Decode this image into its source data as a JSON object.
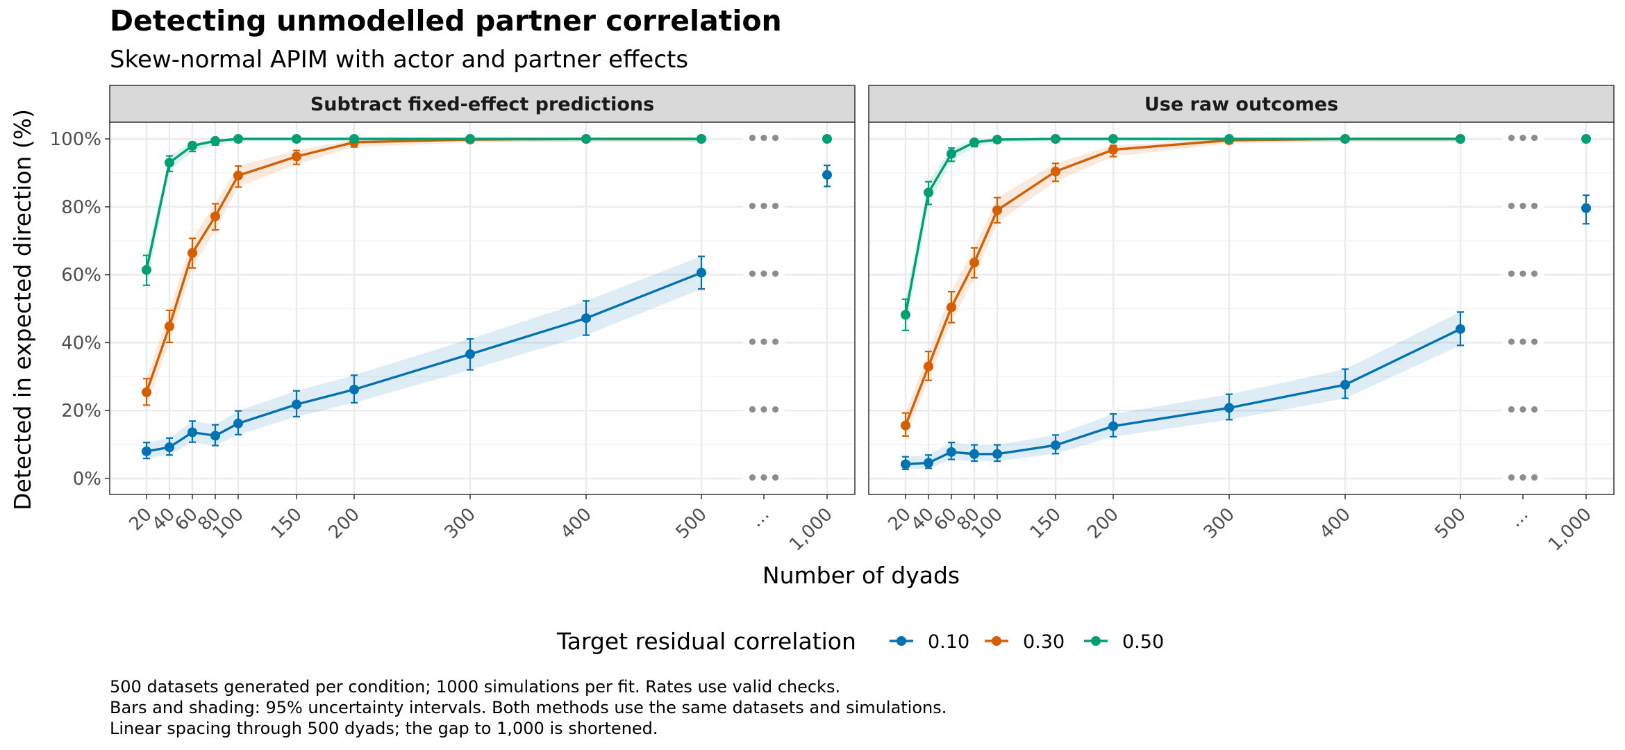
{
  "chart_data": {
    "type": "line",
    "title": "Detecting unmodelled partner correlation",
    "subtitle": "Skew-normal APIM with actor and partner effects",
    "xlabel": "Number of dyads",
    "ylabel": "Detected in expected direction (%)",
    "x_ticks": [
      "20",
      "40",
      "60",
      "80",
      "100",
      "150",
      "200",
      "300",
      "400",
      "500",
      "…",
      "1,000"
    ],
    "y_ticks": [
      "0%",
      "20%",
      "40%",
      "60%",
      "80%",
      "100%"
    ],
    "ylim": [
      0,
      100
    ],
    "gap_marker": "•••",
    "grid": true,
    "legend": {
      "title": "Target residual correlation",
      "position": "bottom",
      "entries": [
        {
          "label": "0.10",
          "color": "#0072B2"
        },
        {
          "label": "0.30",
          "color": "#D55E00"
        },
        {
          "label": "0.50",
          "color": "#009E73"
        }
      ]
    },
    "caption": [
      "500 datasets generated per condition; 1000 simulations per fit. Rates use valid checks.",
      "Bars and shading: 95% uncertainty intervals. Both methods use the same datasets and simulations.",
      "Linear spacing through 500 dyads; the gap to 1,000 is shortened."
    ],
    "panels": [
      {
        "title": "Subtract fixed-effect predictions",
        "series": [
          {
            "name": "0.10",
            "color": "#0072B2",
            "x": [
              20,
              40,
              60,
              80,
              100,
              150,
              200,
              300,
              400,
              500
            ],
            "values": [
              8.0,
              9.2,
              13.6,
              12.6,
              16.2,
              21.8,
              26.2,
              36.6,
              47.2,
              60.6
            ],
            "lower": [
              5.9,
              6.9,
              10.7,
              9.7,
              12.9,
              18.2,
              22.3,
              32.0,
              42.2,
              55.8
            ],
            "upper": [
              10.6,
              11.9,
              16.9,
              15.8,
              19.9,
              25.8,
              30.4,
              41.1,
              52.3,
              65.4
            ],
            "at_1000": {
              "x": 1000,
              "value": 89.4,
              "lower": 86.0,
              "upper": 92.2
            }
          },
          {
            "name": "0.30",
            "color": "#D55E00",
            "x": [
              20,
              40,
              60,
              80,
              100,
              150,
              200,
              300,
              400,
              500
            ],
            "values": [
              25.4,
              44.8,
              66.4,
              77.2,
              89.2,
              94.8,
              99.0,
              99.8,
              100,
              100
            ],
            "lower": [
              21.6,
              40.1,
              62.0,
              73.2,
              85.8,
              92.5,
              97.6,
              98.9,
              99.2,
              99.2
            ],
            "upper": [
              29.4,
              49.5,
              70.7,
              80.9,
              92.0,
              96.6,
              99.7,
              100,
              100,
              100
            ]
          },
          {
            "name": "0.50",
            "color": "#009E73",
            "x": [
              20,
              40,
              60,
              80,
              100,
              150,
              200,
              300,
              400,
              500
            ],
            "values": [
              61.4,
              93.0,
              98.0,
              99.4,
              100,
              100,
              100,
              100,
              100,
              100
            ],
            "lower": [
              56.9,
              90.4,
              96.3,
              98.2,
              99.2,
              99.2,
              99.2,
              99.2,
              99.2,
              99.2
            ],
            "upper": [
              65.7,
              95.0,
              99.0,
              99.9,
              100,
              100,
              100,
              100,
              100,
              100
            ],
            "at_1000": {
              "x": 1000,
              "value": 100,
              "lower": 99.2,
              "upper": 100
            }
          }
        ]
      },
      {
        "title": "Use raw outcomes",
        "series": [
          {
            "name": "0.10",
            "color": "#0072B2",
            "x": [
              20,
              40,
              60,
              80,
              100,
              150,
              200,
              300,
              400,
              500
            ],
            "values": [
              4.2,
              4.6,
              7.8,
              7.2,
              7.2,
              9.8,
              15.4,
              20.8,
              27.6,
              44.0
            ],
            "lower": [
              2.7,
              3.0,
              5.6,
              5.1,
              5.1,
              7.3,
              12.3,
              17.3,
              23.6,
              39.2
            ],
            "upper": [
              6.4,
              6.9,
              10.6,
              9.9,
              9.9,
              12.8,
              19.0,
              24.8,
              32.2,
              49.0
            ],
            "at_1000": {
              "x": 1000,
              "value": 79.6,
              "lower": 75.0,
              "upper": 83.4
            }
          },
          {
            "name": "0.30",
            "color": "#D55E00",
            "x": [
              20,
              40,
              60,
              80,
              100,
              150,
              200,
              300,
              400,
              500
            ],
            "values": [
              15.6,
              33.0,
              50.4,
              63.6,
              79.0,
              90.4,
              96.8,
              99.6,
              100,
              100
            ],
            "lower": [
              12.5,
              28.9,
              45.9,
              59.1,
              75.3,
              87.5,
              94.8,
              98.6,
              99.2,
              99.2
            ],
            "upper": [
              19.3,
              37.4,
              55.0,
              67.9,
              82.7,
              92.8,
              98.1,
              99.9,
              100,
              100
            ]
          },
          {
            "name": "0.50",
            "color": "#009E73",
            "x": [
              20,
              40,
              60,
              80,
              100,
              150,
              200,
              300,
              400,
              500
            ],
            "values": [
              48.2,
              84.2,
              95.6,
              99.0,
              99.8,
              100,
              100,
              100,
              100,
              100
            ],
            "lower": [
              43.6,
              80.7,
              93.4,
              97.7,
              98.9,
              99.2,
              99.2,
              99.2,
              99.2,
              99.2
            ],
            "upper": [
              52.8,
              87.4,
              97.3,
              99.7,
              100,
              100,
              100,
              100,
              100,
              100
            ],
            "at_1000": {
              "x": 1000,
              "value": 100,
              "lower": 99.2,
              "upper": 100
            }
          }
        ]
      }
    ]
  }
}
